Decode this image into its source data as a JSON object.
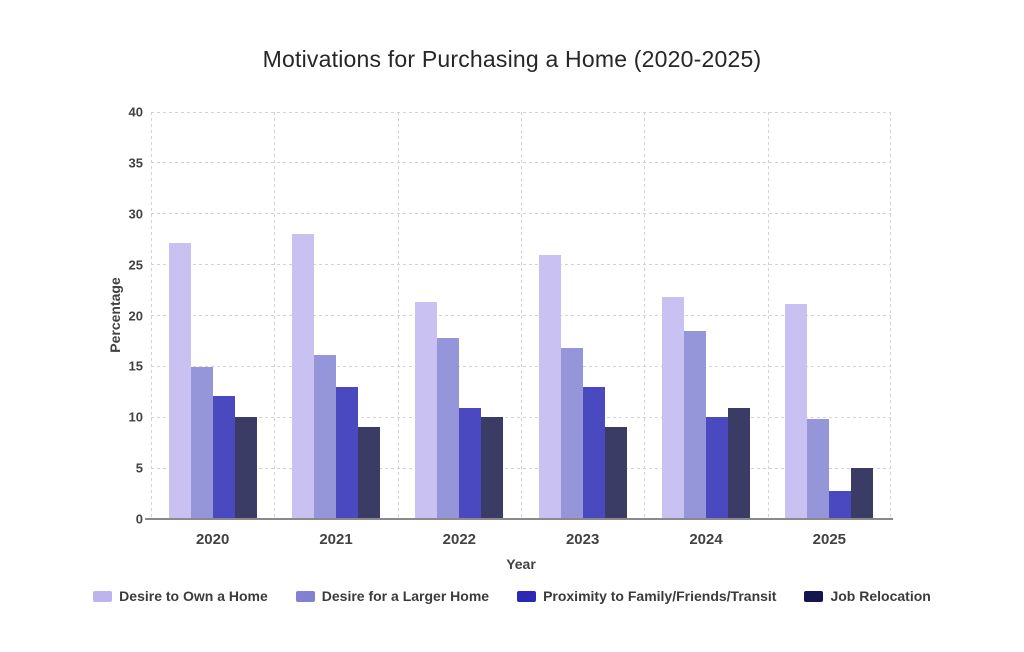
{
  "chart_data": {
    "type": "bar",
    "title": "Motivations for Purchasing a Home (2020-2025)",
    "xlabel": "Year",
    "ylabel": "Percentage",
    "categories": [
      "2020",
      "2021",
      "2022",
      "2023",
      "2024",
      "2025"
    ],
    "series": [
      {
        "name": "Desire to Own a Home",
        "legend_color": "#bdb3ed",
        "bar_color": "#c9c1f1",
        "values": [
          27.1,
          28,
          21.3,
          25.9,
          21.8,
          21.1
        ]
      },
      {
        "name": "Desire for a Larger Home",
        "legend_color": "#8181d1",
        "bar_color": "#9595da",
        "values": [
          14.9,
          16.1,
          17.8,
          16.8,
          18.5,
          9.8
        ]
      },
      {
        "name": "Proximity to Family/Friends/Transit",
        "legend_color": "#2b28b5",
        "bar_color": "#4b49c0",
        "values": [
          12.1,
          13,
          10.9,
          13,
          10,
          2.8
        ]
      },
      {
        "name": "Job Relocation",
        "legend_color": "#16164e",
        "bar_color": "#3a3c66",
        "values": [
          10,
          9,
          10,
          9,
          10.9,
          5
        ]
      }
    ],
    "ylim": [
      0,
      40
    ],
    "ytick_step": 5,
    "grid": true,
    "legend_position": "bottom",
    "colors": {
      "grid": "#d2d2d2",
      "axis_line": "#8a8a8a",
      "tick_text": "#424242",
      "title_text": "#262626"
    }
  }
}
